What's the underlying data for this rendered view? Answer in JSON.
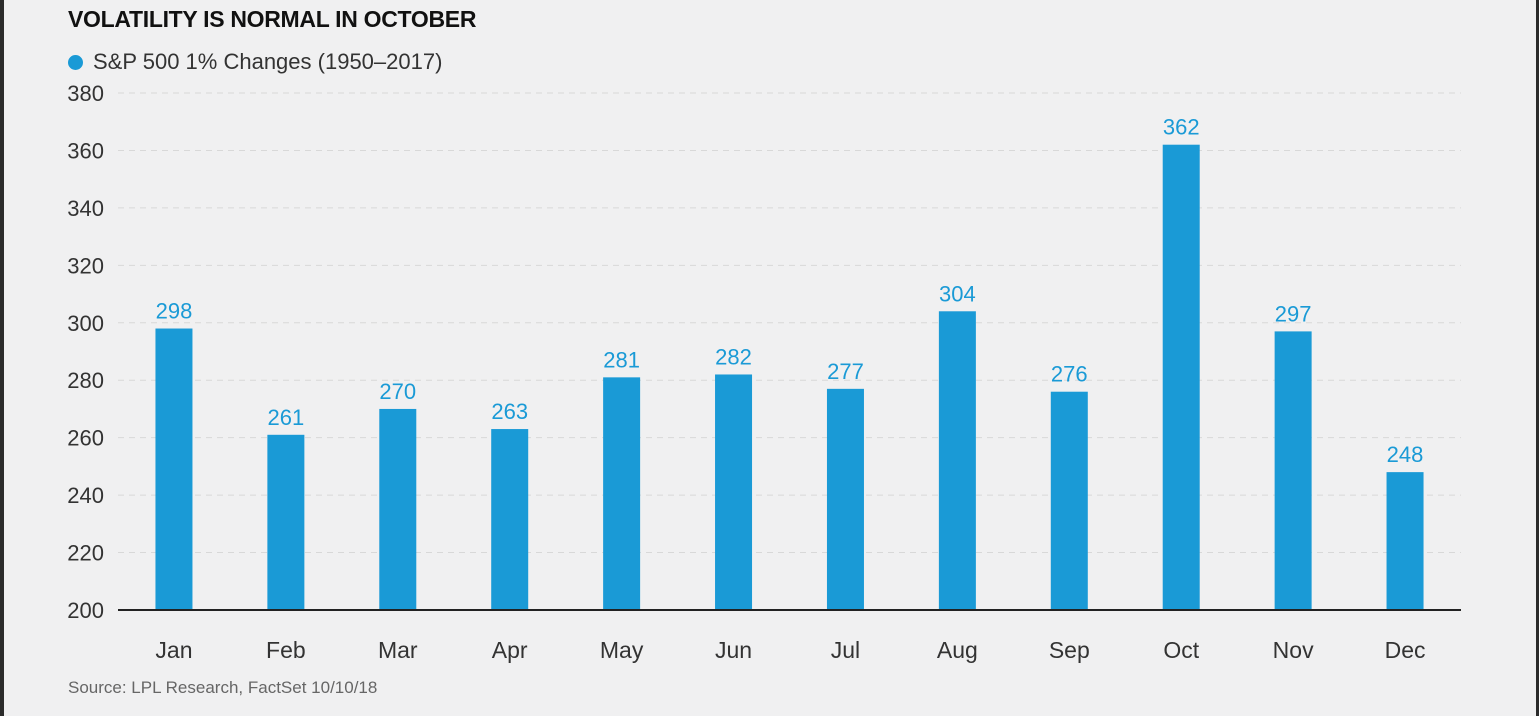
{
  "title": "VOLATILITY IS NORMAL IN OCTOBER",
  "legend": {
    "label": "S&P 500 1% Changes (1950–2017)"
  },
  "source": "Source: LPL Research, FactSet   10/10/18",
  "colors": {
    "bar": "#1a9ad6",
    "axis": "#222222",
    "grid": "#d8d8d8",
    "background": "#f0f0f1"
  },
  "chart_data": {
    "type": "bar",
    "title": "VOLATILITY IS NORMAL IN OCTOBER",
    "categories": [
      "Jan",
      "Feb",
      "Mar",
      "Apr",
      "May",
      "Jun",
      "Jul",
      "Aug",
      "Sep",
      "Oct",
      "Nov",
      "Dec"
    ],
    "series": [
      {
        "name": "S&P 500 1% Changes (1950–2017)",
        "values": [
          298,
          261,
          270,
          263,
          281,
          282,
          277,
          304,
          276,
          362,
          297,
          248
        ]
      }
    ],
    "ylim": [
      200,
      380
    ],
    "yticks": [
      200,
      220,
      240,
      260,
      280,
      300,
      320,
      340,
      360,
      380
    ],
    "grid": true,
    "legend_position": "top-left",
    "data_labels": true
  }
}
